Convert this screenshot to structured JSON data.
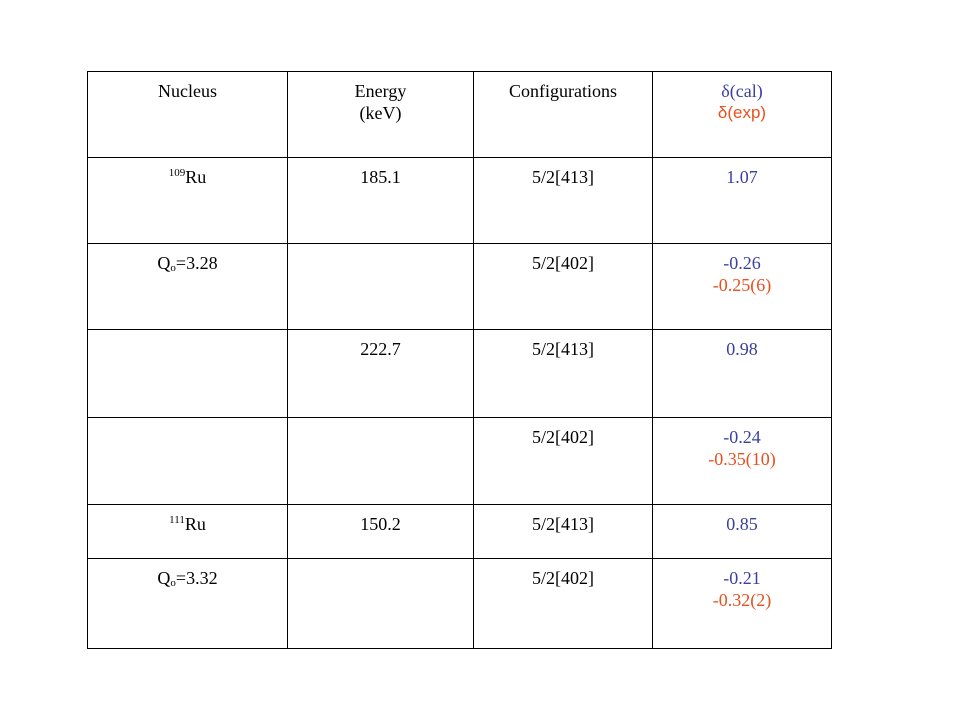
{
  "headers": {
    "nucleus": "Nucleus",
    "energy_line1": "Energy",
    "energy_line2": "(keV)",
    "configurations": "Configurations",
    "delta_cal": "δ(cal)",
    "delta_exp": "δ(exp)"
  },
  "rows": [
    {
      "nucleus_mass": "109",
      "nucleus_symbol": "Ru",
      "energy": "185.1",
      "configuration": "5/2[413]",
      "delta_cal": "1.07",
      "delta_exp": ""
    },
    {
      "q_label": "Q",
      "q_sub": "o",
      "q_value": "=3.28",
      "energy": "",
      "configuration": "5/2[402]",
      "delta_cal": "-0.26",
      "delta_exp": "-0.25(6)"
    },
    {
      "energy": "222.7",
      "configuration": "5/2[413]",
      "delta_cal": "0.98",
      "delta_exp": ""
    },
    {
      "energy": "",
      "configuration": "5/2[402]",
      "delta_cal": "-0.24",
      "delta_exp": "-0.35(10)"
    },
    {
      "nucleus_mass": "111",
      "nucleus_symbol": "Ru",
      "energy": "150.2",
      "configuration": "5/2[413]",
      "delta_cal": "0.85",
      "delta_exp": ""
    },
    {
      "q_label": "Q",
      "q_sub": "o",
      "q_value": "=3.32",
      "energy": "",
      "configuration": "5/2[402]",
      "delta_cal": "-0.21",
      "delta_exp": "-0.32(2)"
    }
  ],
  "colors": {
    "calculated": "#3b3fa0",
    "experimental": "#e8501e",
    "grid": "#000000"
  }
}
